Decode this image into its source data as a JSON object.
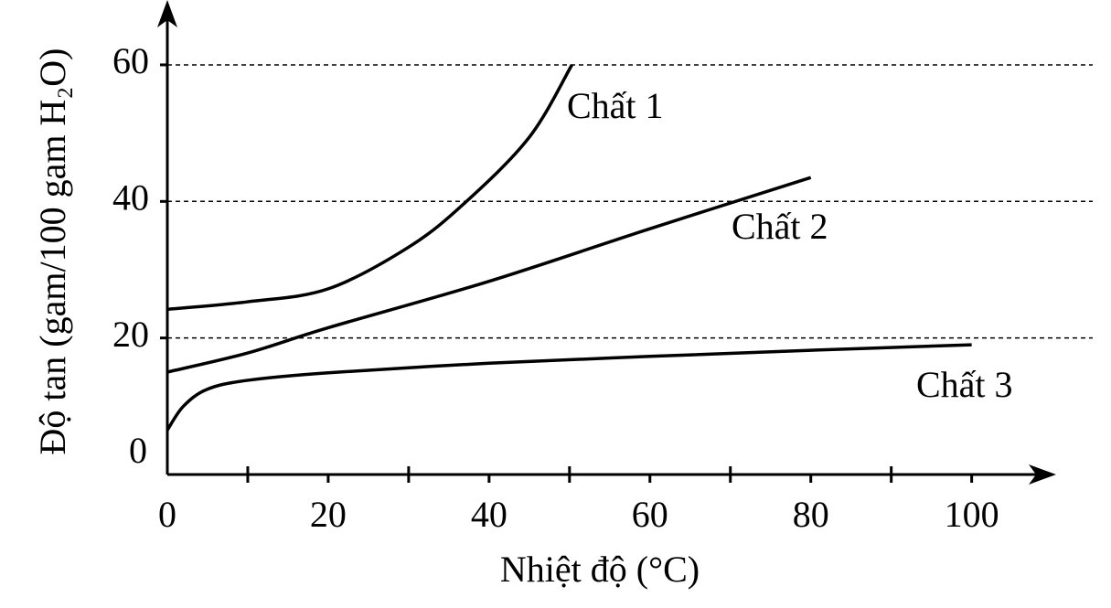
{
  "chart_data": {
    "type": "line",
    "x_label": "Nhiệt độ  (°C)",
    "y_label": "Độ tan  (gam/100 gam H₂O)",
    "xlim": [
      0,
      110.5
    ],
    "ylim": [
      0,
      69.5
    ],
    "xticks": [
      0,
      20,
      40,
      60,
      80,
      100
    ],
    "xminor_ticks": [
      10,
      30,
      50,
      70,
      90
    ],
    "yticks": [
      0,
      20,
      40,
      60
    ],
    "grid": true,
    "series": [
      {
        "name": "Chất 1",
        "color": "#000000",
        "x": [
          0,
          10,
          20,
          30,
          37,
          45,
          50.3
        ],
        "values": [
          24.2,
          25.3,
          27.2,
          33.3,
          39.8,
          49.4,
          60
        ]
      },
      {
        "name": "Chất 2",
        "color": "#000000",
        "x": [
          0,
          10,
          20,
          40,
          60,
          80
        ],
        "values": [
          15,
          17.8,
          21.5,
          28.3,
          36,
          43.5
        ]
      },
      {
        "name": "Chất 3",
        "color": "#000000",
        "x": [
          0,
          2,
          5,
          10,
          20,
          40,
          60,
          80,
          100
        ],
        "values": [
          6.5,
          10,
          12.5,
          13.8,
          14.9,
          16.3,
          17.3,
          18.2,
          19
        ]
      }
    ]
  }
}
